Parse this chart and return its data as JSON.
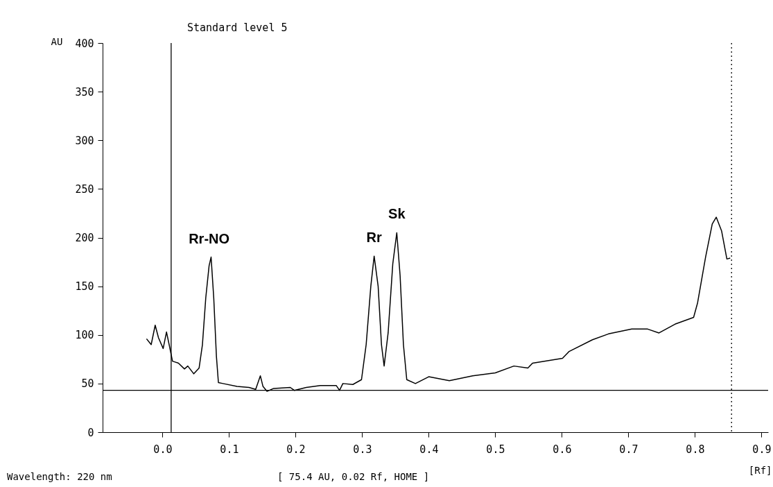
{
  "chart_data": {
    "type": "line",
    "title": "Standard level 5",
    "ylabel": "AU",
    "xlabel": "[Rf]",
    "x": [
      -0.024,
      -0.017,
      -0.011,
      -0.006,
      0.001,
      0.006,
      0.01,
      0.015,
      0.024,
      0.033,
      0.038,
      0.047,
      0.055,
      0.06,
      0.065,
      0.07,
      0.073,
      0.077,
      0.081,
      0.084,
      0.091,
      0.112,
      0.13,
      0.14,
      0.147,
      0.151,
      0.157,
      0.167,
      0.192,
      0.198,
      0.216,
      0.237,
      0.261,
      0.266,
      0.271,
      0.286,
      0.299,
      0.306,
      0.313,
      0.318,
      0.324,
      0.329,
      0.333,
      0.339,
      0.346,
      0.352,
      0.357,
      0.362,
      0.367,
      0.38,
      0.4,
      0.431,
      0.466,
      0.5,
      0.528,
      0.549,
      0.556,
      0.601,
      0.611,
      0.646,
      0.67,
      0.705,
      0.729,
      0.746,
      0.77,
      0.798,
      0.804,
      0.816,
      0.826,
      0.832,
      0.84,
      0.848,
      0.853
    ],
    "series": [
      {
        "color": "#000000",
        "values": [
          96,
          90,
          110,
          97,
          86,
          103,
          90,
          73,
          71,
          65,
          68,
          60,
          66,
          90,
          138,
          171,
          180,
          138,
          78,
          51,
          50,
          47,
          46,
          44,
          58,
          47,
          42,
          45,
          46,
          43,
          46,
          48,
          48,
          43,
          50,
          49,
          54,
          90,
          150,
          181,
          150,
          90,
          68,
          102,
          173,
          205,
          161,
          90,
          54,
          50,
          57,
          53,
          58,
          61,
          68,
          66,
          71,
          76,
          83,
          95,
          101,
          106,
          106,
          102,
          111,
          118,
          133,
          180,
          214,
          221,
          207,
          178,
          179
        ]
      }
    ],
    "xlim": [
      -0.09,
      0.91
    ],
    "ylim": [
      0,
      400
    ],
    "xticks": [
      {
        "value": 0,
        "label": "0.0"
      },
      {
        "value": 0.1,
        "label": "0.1"
      },
      {
        "value": 0.2,
        "label": "0.2"
      },
      {
        "value": 0.3,
        "label": "0.3"
      },
      {
        "value": 0.4,
        "label": "0.4"
      },
      {
        "value": 0.5,
        "label": "0.5"
      },
      {
        "value": 0.6,
        "label": "0.6"
      },
      {
        "value": 0.7,
        "label": "0.7"
      },
      {
        "value": 0.8,
        "label": "0.8"
      },
      {
        "value": 0.9,
        "label": "0.9"
      }
    ],
    "yticks": [
      0,
      50,
      100,
      150,
      200,
      250,
      300,
      350,
      400
    ],
    "ref_lines": [
      {
        "axis": "y",
        "value": 43,
        "color": "#000000",
        "line_style": "solid"
      },
      {
        "axis": "x",
        "value": 0.013,
        "color": "#000000",
        "line_style": "solid"
      },
      {
        "axis": "x",
        "value": 0.855,
        "color": "#000000",
        "line_style": "dotted"
      }
    ],
    "annotations": [
      {
        "text": "Rr-NO",
        "x": 0.07,
        "y": 180
      },
      {
        "text": "Rr",
        "x": 0.318,
        "y": 181
      },
      {
        "text": "Sk",
        "x": 0.352,
        "y": 205
      },
      "Wavelength: 220 nm",
      "[  75.4 AU, 0.02 Rf, HOME  ]"
    ],
    "grid": false,
    "marker": "none",
    "line_style": "solid"
  }
}
